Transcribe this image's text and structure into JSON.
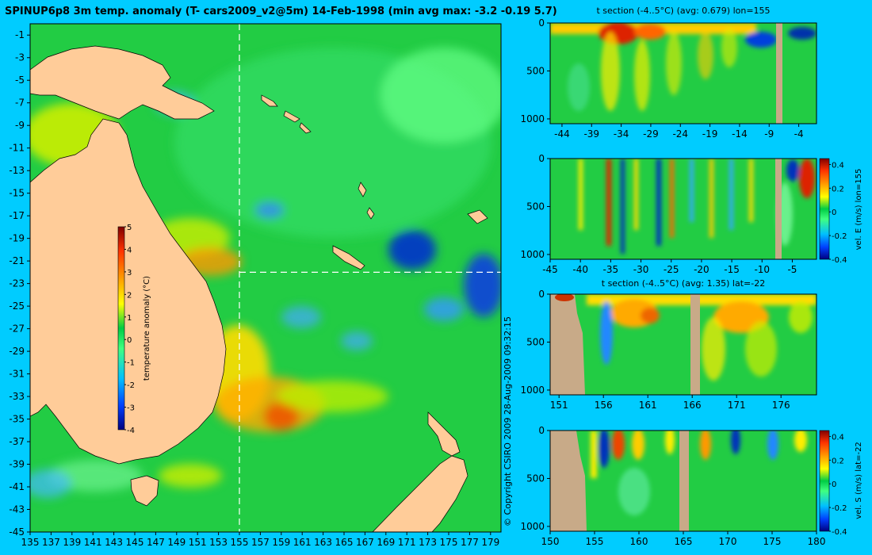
{
  "colors": {
    "background": "#00ccff",
    "land": "#ffcc99",
    "section_land": "#c8aa88",
    "crosshair": "#ffffff",
    "colormap": [
      "#000080",
      "#0040ff",
      "#00bfff",
      "#40ff80",
      "#00cc44",
      "#ffff00",
      "#ff9900",
      "#ff3300",
      "#800000"
    ]
  },
  "copyright": "© Copyright CSIRO 2009   28-Aug-2009 09:32:15",
  "chart_data": [
    {
      "type": "heatmap",
      "id": "map",
      "title": "SPINUP6p8 3m temp. anomaly (T- cars2009_v2@5m) 14-Feb-1998 (min avg max: -3.2 -0.19 5.7)",
      "xlim": [
        135,
        180
      ],
      "ylim": [
        -45,
        0
      ],
      "xticks": [
        "135",
        "137",
        "139",
        "141",
        "143",
        "145",
        "147",
        "149",
        "151",
        "153",
        "155",
        "157",
        "159",
        "161",
        "163",
        "165",
        "167",
        "169",
        "171",
        "173",
        "175",
        "177",
        "179"
      ],
      "yticks": [
        "-1",
        "-3",
        "-5",
        "-7",
        "-9",
        "-11",
        "-13",
        "-15",
        "-17",
        "-19",
        "-21",
        "-23",
        "-25",
        "-27",
        "-29",
        "-31",
        "-33",
        "-35",
        "-37",
        "-39",
        "-41",
        "-43",
        "-45"
      ],
      "crosshair": {
        "lon": 155,
        "lat": -22
      },
      "colorbar": {
        "label": "temperature anomaly (°C)",
        "range": [
          -4,
          5
        ],
        "ticks": [
          "5",
          "4",
          "3",
          "2",
          "1",
          "0",
          "-1",
          "-2",
          "-3",
          "-4"
        ]
      }
    },
    {
      "type": "heatmap",
      "id": "tsec_lon",
      "title": "t section (-4..5°C) (avg: 0.679) lon=155",
      "xlim": [
        -46,
        -1
      ],
      "ylim": [
        1050,
        0
      ],
      "xticks": [
        "-44",
        "-39",
        "-34",
        "-29",
        "-24",
        "-19",
        "-14",
        "-9",
        "-4"
      ],
      "yticks": [
        "0",
        "500",
        "1000"
      ]
    },
    {
      "type": "heatmap",
      "id": "vel_e",
      "title": "",
      "xlim": [
        -45,
        -1
      ],
      "ylim": [
        1050,
        0
      ],
      "xticks": [
        "-45",
        "-40",
        "-35",
        "-30",
        "-25",
        "-20",
        "-15",
        "-10",
        "-5"
      ],
      "yticks": [
        "0",
        "500",
        "1000"
      ],
      "colorbar": {
        "label": "vel. E (m/s) lon=155",
        "range": [
          -0.4,
          0.45
        ],
        "ticks": [
          "0.4",
          "0.2",
          "0",
          "-0.2",
          "-0.4"
        ]
      }
    },
    {
      "type": "heatmap",
      "id": "tsec_lat",
      "title": "t section (-4..5°C) (avg: 1.35) lat=-22",
      "xlim": [
        150,
        180
      ],
      "ylim": [
        1050,
        0
      ],
      "xticks": [
        "151",
        "156",
        "161",
        "166",
        "171",
        "176"
      ],
      "yticks": [
        "0",
        "500",
        "1000"
      ]
    },
    {
      "type": "heatmap",
      "id": "vel_s",
      "title": "",
      "xlim": [
        150,
        180
      ],
      "ylim": [
        1050,
        0
      ],
      "xticks": [
        "150",
        "155",
        "160",
        "165",
        "170",
        "175",
        "180"
      ],
      "yticks": [
        "0",
        "500",
        "1000"
      ],
      "colorbar": {
        "label": "vel. S (m/s) lat=-22",
        "range": [
          -0.4,
          0.45
        ],
        "ticks": [
          "0.4",
          "0.2",
          "0",
          "-0.2",
          "-0.4"
        ]
      }
    }
  ]
}
